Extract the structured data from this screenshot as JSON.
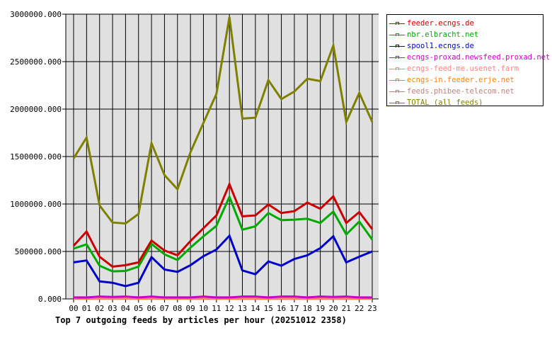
{
  "chart_data": {
    "type": "line",
    "title": "Top 7 outgoing feeds by articles per hour (20251012 2358)",
    "xlabel": "",
    "ylabel": "",
    "ylim": [
      0,
      3000000
    ],
    "yticks": [
      "0.000",
      "500000.000",
      "1000000.000",
      "1500000.000",
      "2000000.000",
      "2500000.000",
      "3000000.000"
    ],
    "ytick_values": [
      0,
      500000,
      1000000,
      1500000,
      2000000,
      2500000,
      3000000
    ],
    "categories": [
      "00",
      "01",
      "02",
      "03",
      "04",
      "05",
      "06",
      "07",
      "08",
      "09",
      "10",
      "11",
      "12",
      "13",
      "14",
      "15",
      "16",
      "17",
      "18",
      "19",
      "20",
      "21",
      "22",
      "23"
    ],
    "grid": true,
    "legend_position": "right",
    "series": [
      {
        "name": "feeder.ecngs.de",
        "color": "#cc0000",
        "values": [
          560000,
          710000,
          445000,
          340000,
          355000,
          385000,
          615000,
          510000,
          460000,
          610000,
          745000,
          880000,
          1210000,
          870000,
          880000,
          995000,
          905000,
          925000,
          1015000,
          950000,
          1080000,
          800000,
          915000,
          735000
        ]
      },
      {
        "name": "nbr.elbracht.net",
        "color": "#00aa00",
        "values": [
          530000,
          575000,
          350000,
          290000,
          295000,
          340000,
          580000,
          470000,
          410000,
          540000,
          660000,
          770000,
          1075000,
          730000,
          765000,
          905000,
          830000,
          835000,
          845000,
          800000,
          920000,
          680000,
          815000,
          625000
        ]
      },
      {
        "name": "spool1.ecngs.de",
        "color": "#0000cc",
        "values": [
          385000,
          405000,
          185000,
          170000,
          135000,
          170000,
          440000,
          310000,
          285000,
          355000,
          450000,
          520000,
          665000,
          300000,
          260000,
          395000,
          350000,
          420000,
          460000,
          535000,
          660000,
          385000,
          445000,
          500000
        ]
      },
      {
        "name": "ecngs-proxad.newsfeed.proxad.net",
        "color": "#cc00cc",
        "values": [
          15000,
          15000,
          25000,
          20000,
          25000,
          15000,
          25000,
          15000,
          15000,
          15000,
          25000,
          15000,
          15000,
          25000,
          25000,
          15000,
          25000,
          25000,
          15000,
          25000,
          20000,
          25000,
          15000,
          15000
        ]
      },
      {
        "name": "ecngs-feed-me.usenet.farm",
        "color": "#ff8080",
        "values": [
          8000,
          8000,
          8000,
          8000,
          8000,
          8000,
          8000,
          8000,
          8000,
          8000,
          8000,
          8000,
          8000,
          8000,
          8000,
          8000,
          8000,
          8000,
          8000,
          8000,
          8000,
          8000,
          8000,
          8000
        ]
      },
      {
        "name": "ecngs-in.feeder.erje.net",
        "color": "#ff8000",
        "values": [
          5000,
          5000,
          5000,
          5000,
          5000,
          5000,
          5000,
          5000,
          5000,
          5000,
          5000,
          5000,
          5000,
          5000,
          5000,
          5000,
          5000,
          5000,
          5000,
          5000,
          5000,
          5000,
          5000,
          5000
        ]
      },
      {
        "name": "feeds.phibee-telecom.net",
        "color": "#c08080",
        "values": [
          10000,
          10000,
          10000,
          10000,
          10000,
          10000,
          10000,
          10000,
          10000,
          10000,
          10000,
          10000,
          10000,
          10000,
          10000,
          10000,
          10000,
          10000,
          10000,
          10000,
          10000,
          10000,
          10000,
          10000
        ]
      },
      {
        "name": "TOTAL (all feeds)",
        "color": "#808000",
        "values": [
          1480000,
          1700000,
          985000,
          805000,
          795000,
          895000,
          1640000,
          1305000,
          1155000,
          1545000,
          1855000,
          2160000,
          2970000,
          1900000,
          1910000,
          2305000,
          2105000,
          2185000,
          2320000,
          2295000,
          2670000,
          1865000,
          2170000,
          1865000
        ]
      }
    ]
  },
  "colors": {
    "plot_background": "#e0e0e0",
    "grid": "#000000",
    "page_background": "#ffffff"
  }
}
